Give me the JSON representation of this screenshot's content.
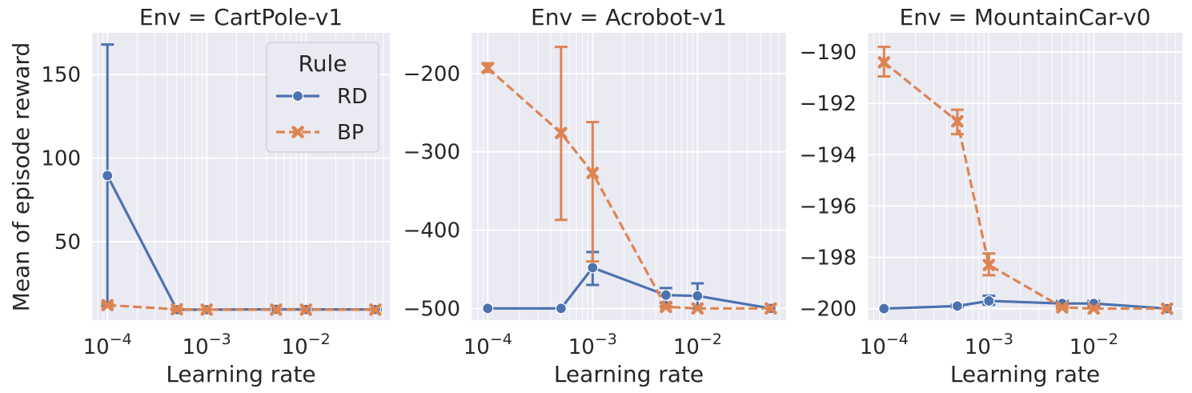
{
  "figure": {
    "ylabel": "Mean of episode reward",
    "legend": {
      "title": "Rule",
      "entries": [
        {
          "label": "RD",
          "color": "#4c72b0",
          "marker": "circle",
          "dash": "solid"
        },
        {
          "label": "BP",
          "color": "#dd8452",
          "marker": "x",
          "dash": "dashed"
        }
      ],
      "placement": "top-right of first panel"
    }
  },
  "chart_data": [
    {
      "type": "line",
      "title": "Env = CartPole-v1",
      "xlabel": "Learning rate",
      "ylabel": "Mean of episode reward",
      "xscale": "log",
      "xlim": [
        7e-05,
        0.07
      ],
      "ylim": [
        3,
        175
      ],
      "xticks": [
        0.0001,
        0.001,
        0.01
      ],
      "xtick_labels": [
        "10^-4",
        "10^-3",
        "10^-2"
      ],
      "yticks": [
        50,
        100,
        150
      ],
      "ytick_labels": [
        "50",
        "100",
        "150"
      ],
      "grid": true,
      "x": [
        0.0001,
        0.0005,
        0.001,
        0.005,
        0.01,
        0.05
      ],
      "series": [
        {
          "name": "RD",
          "values": [
            89.5,
            9.3,
            9.3,
            9.5,
            9.4,
            9.4
          ],
          "err_low": [
            11.5,
            9.0,
            9.0,
            9.0,
            9.0,
            9.0
          ],
          "err_high": [
            168,
            9.6,
            9.6,
            10.0,
            9.8,
            9.8
          ]
        },
        {
          "name": "BP",
          "values": [
            12.0,
            9.5,
            9.3,
            9.3,
            9.3,
            9.3
          ],
          "err_low": [
            11.0,
            9.0,
            9.0,
            9.0,
            9.0,
            9.0
          ],
          "err_high": [
            13.0,
            10.0,
            9.6,
            9.6,
            9.6,
            9.6
          ]
        }
      ]
    },
    {
      "type": "line",
      "title": "Env = Acrobot-v1",
      "xlabel": "Learning rate",
      "xscale": "log",
      "xlim": [
        7e-05,
        0.07
      ],
      "ylim": [
        -515,
        -148
      ],
      "xticks": [
        0.0001,
        0.001,
        0.01
      ],
      "xtick_labels": [
        "10^-4",
        "10^-3",
        "10^-2"
      ],
      "yticks": [
        -500,
        -400,
        -300,
        -200
      ],
      "ytick_labels": [
        "−500",
        "−400",
        "−300",
        "−200"
      ],
      "grid": true,
      "x": [
        0.0001,
        0.0005,
        0.001,
        0.005,
        0.01,
        0.05
      ],
      "series": [
        {
          "name": "RD",
          "values": [
            -500,
            -500,
            -448,
            -483,
            -484,
            -500
          ],
          "err_low": [
            -500,
            -500,
            -470,
            -493,
            -500,
            -500
          ],
          "err_high": [
            -500,
            -500,
            -428,
            -474,
            -468,
            -500
          ]
        },
        {
          "name": "BP",
          "values": [
            -193,
            -276,
            -327,
            -498,
            -500,
            -500
          ],
          "err_low": [
            -198,
            -387,
            -440,
            -499,
            -500,
            -500
          ],
          "err_high": [
            -187,
            -166,
            -262,
            -497,
            -500,
            -500
          ]
        }
      ]
    },
    {
      "type": "line",
      "title": "Env = MountainCar-v0",
      "xlabel": "Learning rate",
      "xscale": "log",
      "xlim": [
        7e-05,
        0.07
      ],
      "ylim": [
        -200.45,
        -189.25
      ],
      "xticks": [
        0.0001,
        0.001,
        0.01
      ],
      "xtick_labels": [
        "10^-4",
        "10^-3",
        "10^-2"
      ],
      "yticks": [
        -200,
        -198,
        -196,
        -194,
        -192,
        -190
      ],
      "ytick_labels": [
        "−200",
        "−198",
        "−196",
        "−194",
        "−192",
        "−190"
      ],
      "grid": true,
      "x": [
        0.0001,
        0.0005,
        0.001,
        0.005,
        0.01,
        0.05
      ],
      "series": [
        {
          "name": "RD",
          "values": [
            -200.0,
            -199.9,
            -199.7,
            -199.8,
            -199.8,
            -200.0
          ],
          "err_low": [
            -200.0,
            -199.95,
            -199.85,
            -199.9,
            -199.9,
            -200.0
          ],
          "err_high": [
            -200.0,
            -199.85,
            -199.5,
            -199.7,
            -199.7,
            -200.0
          ]
        },
        {
          "name": "BP",
          "values": [
            -190.4,
            -192.7,
            -198.3,
            -199.95,
            -200.0,
            -200.0
          ],
          "err_low": [
            -190.95,
            -193.2,
            -198.7,
            -200.0,
            -200.0,
            -200.0
          ],
          "err_high": [
            -189.8,
            -192.25,
            -197.85,
            -199.9,
            -200.0,
            -200.0
          ]
        }
      ]
    }
  ]
}
